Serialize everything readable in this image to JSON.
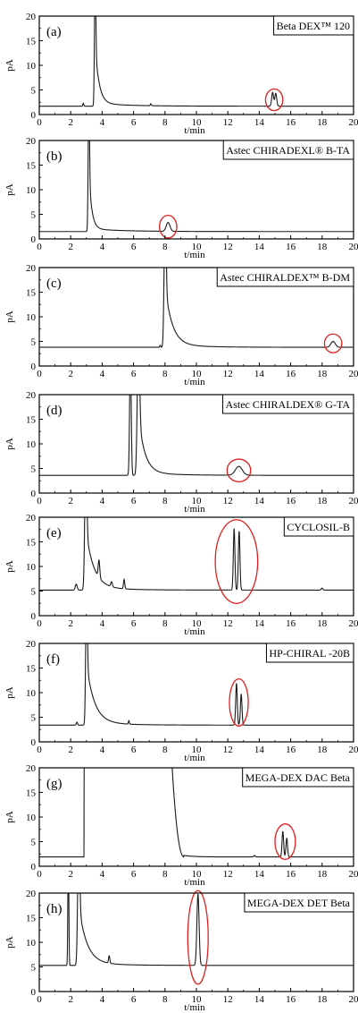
{
  "chart_data": [
    {
      "type": "line",
      "panel_label": "(a)",
      "column_name": "Beta DEX™ 120",
      "xlabel": "t/min",
      "ylabel": "pA",
      "xlim": [
        0,
        20
      ],
      "ylim": [
        0,
        20
      ],
      "x_ticks": [
        "0",
        "2",
        "4",
        "6",
        "8",
        "10",
        "12",
        "14",
        "20"
      ],
      "y_ticks": [
        "0",
        "5",
        "10",
        "15",
        "20"
      ],
      "baseline": 1.7,
      "peaks": [
        {
          "t": 2.8,
          "h": 0.6,
          "w": 0.03
        },
        {
          "t": 3.55,
          "h": 25,
          "w": 0.04,
          "tail": 0.25
        },
        {
          "t": 7.1,
          "h": 0.4,
          "w": 0.03
        },
        {
          "t": 14.85,
          "h": 2.8,
          "w": 0.06
        },
        {
          "t": 15.05,
          "h": 2.6,
          "w": 0.06
        }
      ],
      "circled": {
        "t": 14.95,
        "y": 3.0,
        "rt": 0.55,
        "ry": 2.2
      },
      "x_ticks_full": [
        "0",
        "2",
        "4",
        "6",
        "8",
        "10",
        "12",
        "14",
        "16",
        "18",
        "20"
      ]
    },
    {
      "type": "line",
      "panel_label": "(b)",
      "column_name": "Astec CHIRADEXL® B-TA",
      "xlabel": "t/min",
      "ylabel": "pA",
      "xlim": [
        0,
        20
      ],
      "ylim": [
        0,
        20
      ],
      "x_ticks_full": [
        "0",
        "2",
        "4",
        "6",
        "8",
        "10",
        "12",
        "14",
        "16",
        "18",
        "20"
      ],
      "y_ticks": [
        "0",
        "5",
        "10",
        "15",
        "20"
      ],
      "baseline": 1.5,
      "peaks": [
        {
          "t": 3.15,
          "h": 25,
          "w": 0.04,
          "tail": 0.18
        },
        {
          "t": 8.2,
          "h": 1.8,
          "w": 0.12
        }
      ],
      "circled": {
        "t": 8.2,
        "y": 2.5,
        "rt": 0.55,
        "ry": 2.3
      }
    },
    {
      "type": "line",
      "panel_label": "(c)",
      "column_name": "Astec CHIRALDEX™ B-DM",
      "xlabel": "t/min",
      "ylabel": "pA",
      "xlim": [
        0,
        20
      ],
      "ylim": [
        0,
        20
      ],
      "x_ticks_full": [
        "0",
        "2",
        "4",
        "6",
        "8",
        "10",
        "12",
        "14",
        "16",
        "18",
        "20"
      ],
      "y_ticks": [
        "0",
        "5",
        "10",
        "15",
        "20"
      ],
      "baseline": 3.8,
      "peaks": [
        {
          "t": 7.7,
          "h": 0.4,
          "w": 0.03
        },
        {
          "t": 8.0,
          "h": 25,
          "w": 0.06,
          "tail": 0.45
        },
        {
          "t": 18.7,
          "h": 1.2,
          "w": 0.14
        }
      ],
      "circled": {
        "t": 18.7,
        "y": 4.6,
        "rt": 0.55,
        "ry": 1.9
      }
    },
    {
      "type": "line",
      "panel_label": "(d)",
      "column_name": "Astec CHIRALDEX® G-TA",
      "xlabel": "t/min",
      "ylabel": "pA",
      "xlim": [
        0,
        20
      ],
      "ylim": [
        0,
        20
      ],
      "x_ticks_full": [
        "0",
        "2",
        "4",
        "6",
        "8",
        "10",
        "12",
        "14",
        "16",
        "18",
        "20"
      ],
      "y_ticks": [
        "0",
        "5",
        "10",
        "15",
        "20"
      ],
      "baseline": 3.6,
      "peaks": [
        {
          "t": 5.8,
          "h": 25,
          "w": 0.05
        },
        {
          "t": 6.3,
          "h": 25,
          "w": 0.07,
          "tail": 0.4
        },
        {
          "t": 12.7,
          "h": 1.8,
          "w": 0.22
        }
      ],
      "circled": {
        "t": 12.7,
        "y": 4.6,
        "rt": 0.75,
        "ry": 2.3
      }
    },
    {
      "type": "line",
      "panel_label": "(e)",
      "column_name": "CYCLOSIL-B",
      "xlabel": "t/min",
      "ylabel": "pA",
      "xlim": [
        0,
        20
      ],
      "ylim": [
        0,
        20
      ],
      "x_ticks_full": [
        "0",
        "2",
        "4",
        "6",
        "8",
        "10",
        "12",
        "14",
        "16",
        "18",
        "20"
      ],
      "y_ticks": [
        "0",
        "5",
        "10",
        "15",
        "20"
      ],
      "baseline": 5.2,
      "peaks": [
        {
          "t": 2.35,
          "h": 1.2,
          "w": 0.06
        },
        {
          "t": 2.95,
          "h": 25,
          "w": 0.06,
          "tail": 0.5
        },
        {
          "t": 3.8,
          "h": 3.5,
          "w": 0.05
        },
        {
          "t": 4.6,
          "h": 1.0,
          "w": 0.05
        },
        {
          "t": 5.4,
          "h": 1.9,
          "w": 0.04
        },
        {
          "t": 12.4,
          "h": 12.5,
          "w": 0.05
        },
        {
          "t": 12.72,
          "h": 12.0,
          "w": 0.05
        },
        {
          "t": 18.0,
          "h": 0.4,
          "w": 0.05
        }
      ],
      "circled": {
        "t": 12.55,
        "y": 11.0,
        "rt": 1.35,
        "ry": 8.5
      }
    },
    {
      "type": "line",
      "panel_label": "(f)",
      "column_name": "HP-CHIRAL -20B",
      "xlabel": "t/min",
      "ylabel": "pA",
      "xlim": [
        0,
        20
      ],
      "ylim": [
        0,
        20
      ],
      "x_ticks_full": [
        "0",
        "2",
        "4",
        "6",
        "8",
        "10",
        "12",
        "14",
        "16",
        "18",
        "20"
      ],
      "y_ticks": [
        "0",
        "5",
        "10",
        "15",
        "20"
      ],
      "baseline": 3.4,
      "peaks": [
        {
          "t": 2.4,
          "h": 0.6,
          "w": 0.04
        },
        {
          "t": 3.0,
          "h": 25,
          "w": 0.05,
          "tail": 0.5
        },
        {
          "t": 5.7,
          "h": 0.7,
          "w": 0.03
        },
        {
          "t": 12.55,
          "h": 8.5,
          "w": 0.05
        },
        {
          "t": 12.85,
          "h": 6.3,
          "w": 0.05
        }
      ],
      "circled": {
        "t": 12.7,
        "y": 8.0,
        "rt": 0.6,
        "ry": 4.8
      }
    },
    {
      "type": "line",
      "panel_label": "(g)",
      "column_name": "MEGA-DEX DAC Beta",
      "xlabel": "t/min",
      "ylabel": "pA",
      "xlim": [
        0,
        20
      ],
      "ylim": [
        0,
        20
      ],
      "x_ticks_full": [
        "0",
        "2",
        "4",
        "6",
        "8",
        "10",
        "12",
        "14",
        "16",
        "18",
        "20"
      ],
      "y_ticks": [
        "0",
        "5",
        "10",
        "15",
        "20"
      ],
      "baseline": 1.9,
      "plateau": {
        "from": 2.85,
        "to": 8.25,
        "fall_end": 9.2
      },
      "peaks": [
        {
          "t": 13.7,
          "h": 0.3,
          "w": 0.04
        },
        {
          "t": 15.5,
          "h": 5.2,
          "w": 0.05
        },
        {
          "t": 15.75,
          "h": 3.8,
          "w": 0.05
        }
      ],
      "circled": {
        "t": 15.65,
        "y": 5.0,
        "rt": 0.65,
        "ry": 3.6
      }
    },
    {
      "type": "line",
      "panel_label": "(h)",
      "column_name": "MEGA-DEX DET Beta",
      "xlabel": "t/min",
      "ylabel": "pA",
      "xlim": [
        0,
        20
      ],
      "ylim": [
        0,
        20
      ],
      "x_ticks_full": [
        "0",
        "2",
        "4",
        "6",
        "8",
        "10",
        "12",
        "14",
        "16",
        "18",
        "20"
      ],
      "y_ticks": [
        "0",
        "5",
        "10",
        "15",
        "20"
      ],
      "baseline": 5.3,
      "peaks": [
        {
          "t": 1.85,
          "h": 25,
          "w": 0.03
        },
        {
          "t": 2.5,
          "h": 25,
          "w": 0.06,
          "tail": 0.5
        },
        {
          "t": 4.45,
          "h": 1.5,
          "w": 0.04
        },
        {
          "t": 10.1,
          "h": 14.5,
          "w": 0.07
        }
      ],
      "circled": {
        "t": 10.1,
        "y": 11.0,
        "rt": 0.65,
        "ry": 9.5
      }
    }
  ],
  "colors": {
    "trace": "#1a1a1a",
    "circle": "#e02020",
    "axis": "#000000"
  }
}
